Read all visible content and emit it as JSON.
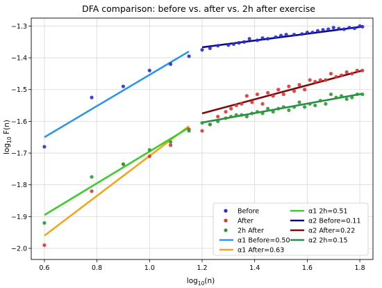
{
  "chart_data": {
    "type": "scatter",
    "title": "DFA comparison: before vs. after vs. 2h after exercise",
    "xlabel": "log",
    "xlabel_sub": "10",
    "xlabel_tail": "(n)",
    "ylabel": "log",
    "ylabel_sub": "10",
    "ylabel_tail": " F(n)",
    "xlim": [
      0.55,
      1.85
    ],
    "ylim": [
      -2.035,
      -1.275
    ],
    "grid": true,
    "legend_position": "lower-right",
    "x_ticks": [
      {
        "value": 0.6,
        "label": "0.6"
      },
      {
        "value": 0.8,
        "label": "0.8"
      },
      {
        "value": 1.0,
        "label": "1.0"
      },
      {
        "value": 1.2,
        "label": "1.2"
      },
      {
        "value": 1.4,
        "label": "1.4"
      },
      {
        "value": 1.6,
        "label": "1.6"
      },
      {
        "value": 1.8,
        "label": "1.8"
      }
    ],
    "y_ticks": [
      {
        "value": -1.3,
        "label": "−1.3"
      },
      {
        "value": -1.4,
        "label": "−1.4"
      },
      {
        "value": -1.5,
        "label": "−1.5"
      },
      {
        "value": -1.6,
        "label": "−1.6"
      },
      {
        "value": -1.7,
        "label": "−1.7"
      },
      {
        "value": -1.8,
        "label": "−1.8"
      },
      {
        "value": -1.9,
        "label": "−1.9"
      },
      {
        "value": -2.0,
        "label": "−2.0"
      }
    ],
    "scatter_series": [
      {
        "name": "Before",
        "color": "#2b2bd8",
        "points": [
          [
            0.6,
            -1.68
          ],
          [
            0.78,
            -1.525
          ],
          [
            0.9,
            -1.49
          ],
          [
            1.0,
            -1.44
          ],
          [
            1.08,
            -1.42
          ],
          [
            1.15,
            -1.395
          ],
          [
            1.2,
            -1.375
          ],
          [
            1.23,
            -1.37
          ],
          [
            1.26,
            -1.362
          ],
          [
            1.3,
            -1.36
          ],
          [
            1.32,
            -1.357
          ],
          [
            1.34,
            -1.353
          ],
          [
            1.36,
            -1.35
          ],
          [
            1.38,
            -1.34
          ],
          [
            1.41,
            -1.345
          ],
          [
            1.43,
            -1.338
          ],
          [
            1.45,
            -1.34
          ],
          [
            1.48,
            -1.335
          ],
          [
            1.5,
            -1.33
          ],
          [
            1.52,
            -1.327
          ],
          [
            1.55,
            -1.327
          ],
          [
            1.58,
            -1.325
          ],
          [
            1.6,
            -1.32
          ],
          [
            1.62,
            -1.32
          ],
          [
            1.64,
            -1.315
          ],
          [
            1.66,
            -1.312
          ],
          [
            1.68,
            -1.31
          ],
          [
            1.7,
            -1.305
          ],
          [
            1.72,
            -1.308
          ],
          [
            1.74,
            -1.31
          ],
          [
            1.76,
            -1.305
          ],
          [
            1.78,
            -1.307
          ],
          [
            1.8,
            -1.3
          ],
          [
            1.81,
            -1.302
          ]
        ]
      },
      {
        "name": "After",
        "color": "#dd3535",
        "points": [
          [
            0.6,
            -1.99
          ],
          [
            0.78,
            -1.82
          ],
          [
            0.9,
            -1.735
          ],
          [
            1.0,
            -1.71
          ],
          [
            1.08,
            -1.675
          ],
          [
            1.15,
            -1.625
          ],
          [
            1.2,
            -1.63
          ],
          [
            1.23,
            -1.61
          ],
          [
            1.26,
            -1.585
          ],
          [
            1.29,
            -1.57
          ],
          [
            1.31,
            -1.56
          ],
          [
            1.33,
            -1.55
          ],
          [
            1.35,
            -1.545
          ],
          [
            1.37,
            -1.52
          ],
          [
            1.39,
            -1.54
          ],
          [
            1.41,
            -1.515
          ],
          [
            1.43,
            -1.545
          ],
          [
            1.45,
            -1.51
          ],
          [
            1.47,
            -1.52
          ],
          [
            1.49,
            -1.5
          ],
          [
            1.51,
            -1.515
          ],
          [
            1.53,
            -1.49
          ],
          [
            1.55,
            -1.505
          ],
          [
            1.57,
            -1.485
          ],
          [
            1.59,
            -1.5
          ],
          [
            1.61,
            -1.47
          ],
          [
            1.63,
            -1.475
          ],
          [
            1.65,
            -1.47
          ],
          [
            1.67,
            -1.47
          ],
          [
            1.69,
            -1.45
          ],
          [
            1.71,
            -1.46
          ],
          [
            1.73,
            -1.455
          ],
          [
            1.75,
            -1.445
          ],
          [
            1.77,
            -1.45
          ],
          [
            1.79,
            -1.44
          ],
          [
            1.81,
            -1.44
          ]
        ]
      },
      {
        "name": "2h After",
        "color": "#2f9a2f",
        "points": [
          [
            0.6,
            -1.92
          ],
          [
            0.78,
            -1.775
          ],
          [
            0.9,
            -1.735
          ],
          [
            1.0,
            -1.69
          ],
          [
            1.08,
            -1.665
          ],
          [
            1.15,
            -1.63
          ],
          [
            1.2,
            -1.605
          ],
          [
            1.23,
            -1.61
          ],
          [
            1.26,
            -1.6
          ],
          [
            1.29,
            -1.59
          ],
          [
            1.31,
            -1.585
          ],
          [
            1.33,
            -1.58
          ],
          [
            1.35,
            -1.58
          ],
          [
            1.37,
            -1.585
          ],
          [
            1.39,
            -1.575
          ],
          [
            1.41,
            -1.57
          ],
          [
            1.43,
            -1.575
          ],
          [
            1.45,
            -1.56
          ],
          [
            1.47,
            -1.57
          ],
          [
            1.49,
            -1.56
          ],
          [
            1.51,
            -1.555
          ],
          [
            1.53,
            -1.565
          ],
          [
            1.55,
            -1.555
          ],
          [
            1.57,
            -1.54
          ],
          [
            1.59,
            -1.555
          ],
          [
            1.61,
            -1.545
          ],
          [
            1.63,
            -1.55
          ],
          [
            1.65,
            -1.535
          ],
          [
            1.67,
            -1.545
          ],
          [
            1.69,
            -1.515
          ],
          [
            1.71,
            -1.525
          ],
          [
            1.73,
            -1.52
          ],
          [
            1.75,
            -1.53
          ],
          [
            1.77,
            -1.525
          ],
          [
            1.79,
            -1.515
          ],
          [
            1.81,
            -1.515
          ]
        ]
      }
    ],
    "fit_lines": [
      {
        "name": "α1 Before=0.50",
        "color": "#2c97e8",
        "from": [
          0.6,
          -1.65
        ],
        "to": [
          1.15,
          -1.38
        ]
      },
      {
        "name": "α1 After=0.63",
        "color": "#f5a516",
        "from": [
          0.6,
          -1.96
        ],
        "to": [
          1.15,
          -1.615
        ]
      },
      {
        "name": "α1 2h=0.51",
        "color": "#3ccc2c",
        "from": [
          0.6,
          -1.895
        ],
        "to": [
          1.15,
          -1.62
        ]
      },
      {
        "name": "α2 Before=0.11",
        "color": "#0a0a78",
        "from": [
          1.2,
          -1.367
        ],
        "to": [
          1.81,
          -1.302
        ]
      },
      {
        "name": "α2 After=0.22",
        "color": "#7c0a0a",
        "from": [
          1.2,
          -1.575
        ],
        "to": [
          1.81,
          -1.44
        ]
      },
      {
        "name": "α2 2h=0.15",
        "color": "#268c4e",
        "from": [
          1.2,
          -1.604
        ],
        "to": [
          1.81,
          -1.513
        ]
      }
    ]
  }
}
